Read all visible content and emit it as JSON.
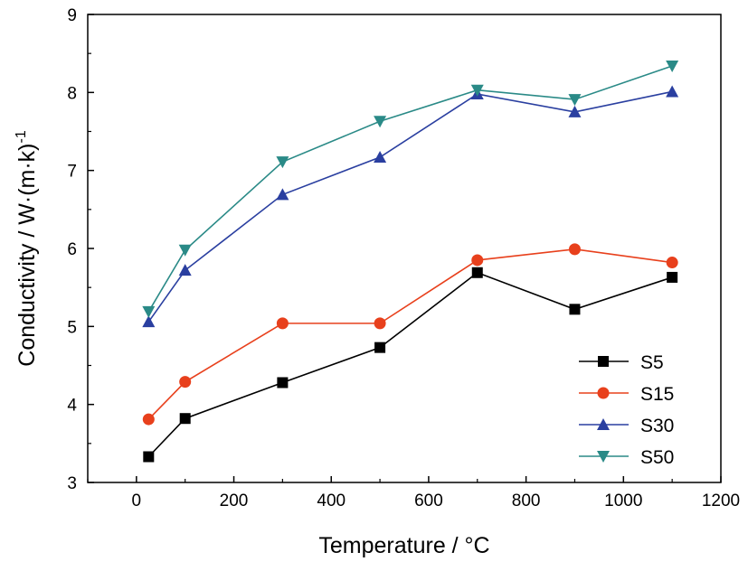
{
  "chart_data": {
    "type": "line",
    "title": "",
    "xlabel": "Temperature / °C",
    "xlabel_parts": {
      "main": "Temperature / ",
      "sup": "o",
      "unit": "C"
    },
    "ylabel": "Conductivity / W·(m·k)-1",
    "ylabel_parts": {
      "main": "Conductivity / W·(m·k)",
      "sup": "-1"
    },
    "xlim": [
      -100,
      1200
    ],
    "ylim": [
      3,
      9
    ],
    "xticks": [
      0,
      200,
      400,
      600,
      800,
      1000,
      1200
    ],
    "yticks": [
      3,
      4,
      5,
      6,
      7,
      8,
      9
    ],
    "grid": false,
    "legend_position": "bottom-right",
    "x": [
      25,
      100,
      300,
      500,
      700,
      900,
      1100
    ],
    "series": [
      {
        "name": "S5",
        "color": "#000000",
        "marker": "square",
        "values": [
          3.33,
          3.82,
          4.28,
          4.73,
          5.69,
          5.22,
          5.63
        ]
      },
      {
        "name": "S15",
        "color": "#e8401c",
        "marker": "circle",
        "values": [
          3.81,
          4.29,
          5.04,
          5.04,
          5.85,
          5.99,
          5.82
        ]
      },
      {
        "name": "S30",
        "color": "#2a3fa0",
        "marker": "triangle-up",
        "values": [
          5.06,
          5.72,
          6.69,
          7.17,
          7.98,
          7.75,
          8.01
        ]
      },
      {
        "name": "S50",
        "color": "#2a8a87",
        "marker": "triangle-down",
        "values": [
          5.19,
          5.98,
          7.11,
          7.63,
          8.03,
          7.91,
          8.34
        ]
      }
    ]
  }
}
